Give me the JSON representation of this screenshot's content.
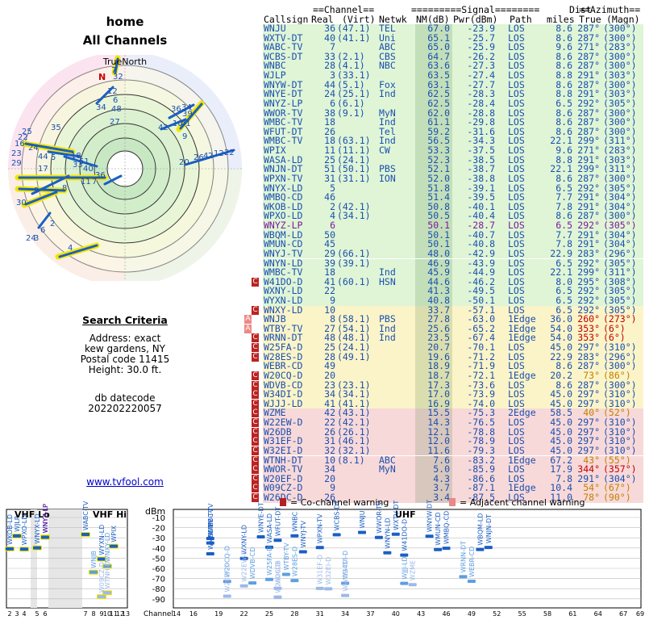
{
  "header": {
    "location": "home",
    "subtitle": "All Channels"
  },
  "radar": {
    "north_label": "TrueNorth",
    "north_marker": "N"
  },
  "criteria": {
    "heading": "Search Criteria",
    "address": "Address: exact",
    "city": "kew gardens, NY",
    "postal": "Postal code 11415",
    "height": "Height: 30.0 ft.",
    "db_label": "db datecode",
    "db_value": "202202220057"
  },
  "footer_link": "www.tvfool.com",
  "table": {
    "group_channel": "==Channel==",
    "group_signal": "=========Signal========",
    "group_dist": "Dist",
    "group_azimuth": "==Azimuth==",
    "col_callsign": "Callsign",
    "col_real": "Real",
    "col_virt": "(Virt)",
    "col_netwk": "Netwk",
    "col_nm": "NM(dB)",
    "col_pwr": "Pwr(dBm)",
    "col_path": "Path",
    "col_miles": "miles",
    "col_true": "True",
    "col_magn": "(Magn)",
    "rows": [
      {
        "call": "WNJU",
        "real": "36",
        "virt": "(47.1)",
        "net": "TEL",
        "nm": "67.0",
        "pwr": "-23.9",
        "path": "LOS",
        "dist": "8.6",
        "true": "287°",
        "magn": "(300°)",
        "zone": "g",
        "warn": ""
      },
      {
        "call": "WXTV-DT",
        "real": "40",
        "virt": "(41.1)",
        "net": "Uni",
        "nm": "65.1",
        "pwr": "-25.7",
        "path": "LOS",
        "dist": "8.6",
        "true": "287°",
        "magn": "(300°)",
        "zone": "g",
        "warn": ""
      },
      {
        "call": "WABC-TV",
        "real": "7",
        "virt": "",
        "net": "ABC",
        "nm": "65.0",
        "pwr": "-25.9",
        "path": "LOS",
        "dist": "9.6",
        "true": "271°",
        "magn": "(283°)",
        "zone": "g",
        "warn": ""
      },
      {
        "call": "WCBS-DT",
        "real": "33",
        "virt": "(2.1)",
        "net": "CBS",
        "nm": "64.7",
        "pwr": "-26.2",
        "path": "LOS",
        "dist": "8.6",
        "true": "287°",
        "magn": "(300°)",
        "zone": "g",
        "warn": ""
      },
      {
        "call": "WNBC",
        "real": "28",
        "virt": "(4.1)",
        "net": "NBC",
        "nm": "63.6",
        "pwr": "-27.3",
        "path": "LOS",
        "dist": "8.6",
        "true": "287°",
        "magn": "(300°)",
        "zone": "g",
        "warn": ""
      },
      {
        "call": "WJLP",
        "real": "3",
        "virt": "(33.1)",
        "net": "",
        "nm": "63.5",
        "pwr": "-27.4",
        "path": "LOS",
        "dist": "8.8",
        "true": "291°",
        "magn": "(303°)",
        "zone": "g",
        "warn": ""
      },
      {
        "call": "WNYW-DT",
        "real": "44",
        "virt": "(5.1)",
        "net": "Fox",
        "nm": "63.1",
        "pwr": "-27.7",
        "path": "LOS",
        "dist": "8.6",
        "true": "287°",
        "magn": "(300°)",
        "zone": "g",
        "warn": ""
      },
      {
        "call": "WNYE-DT",
        "real": "24",
        "virt": "(25.1)",
        "net": "Ind",
        "nm": "62.5",
        "pwr": "-28.3",
        "path": "LOS",
        "dist": "8.8",
        "true": "291°",
        "magn": "(303°)",
        "zone": "g",
        "warn": ""
      },
      {
        "call": "WNYZ-LP",
        "real": "6",
        "virt": "(6.1)",
        "net": "",
        "nm": "62.5",
        "pwr": "-28.4",
        "path": "LOS",
        "dist": "6.5",
        "true": "292°",
        "magn": "(305°)",
        "zone": "g",
        "warn": ""
      },
      {
        "call": "WWOR-TV",
        "real": "38",
        "virt": "(9.1)",
        "net": "MyN",
        "nm": "62.0",
        "pwr": "-28.8",
        "path": "LOS",
        "dist": "8.6",
        "true": "287°",
        "magn": "(300°)",
        "zone": "g",
        "warn": ""
      },
      {
        "call": "WMBC-TV",
        "real": "18",
        "virt": "",
        "net": "Ind",
        "nm": "61.1",
        "pwr": "-29.8",
        "path": "LOS",
        "dist": "8.6",
        "true": "287°",
        "magn": "(300°)",
        "zone": "g",
        "warn": ""
      },
      {
        "call": "WFUT-DT",
        "real": "26",
        "virt": "",
        "net": "Tel",
        "nm": "59.2",
        "pwr": "-31.6",
        "path": "LOS",
        "dist": "8.6",
        "true": "287°",
        "magn": "(300°)",
        "zone": "g",
        "warn": ""
      },
      {
        "call": "WMBC-TV",
        "real": "18",
        "virt": "(63.1)",
        "net": "Ind",
        "nm": "56.5",
        "pwr": "-34.3",
        "path": "LOS",
        "dist": "22.1",
        "true": "299°",
        "magn": "(311°)",
        "zone": "g",
        "warn": ""
      },
      {
        "call": "WPIX",
        "real": "11",
        "virt": "(11.1)",
        "net": "CW",
        "nm": "53.3",
        "pwr": "-37.5",
        "path": "LOS",
        "dist": "9.6",
        "true": "271°",
        "magn": "(283°)",
        "zone": "g",
        "warn": ""
      },
      {
        "call": "WASA-LD",
        "real": "25",
        "virt": "(24.1)",
        "net": "",
        "nm": "52.3",
        "pwr": "-38.5",
        "path": "LOS",
        "dist": "8.8",
        "true": "291°",
        "magn": "(303°)",
        "zone": "g",
        "warn": ""
      },
      {
        "call": "WNJN-DT",
        "real": "51",
        "virt": "(50.1)",
        "net": "PBS",
        "nm": "52.1",
        "pwr": "-38.7",
        "path": "LOS",
        "dist": "22.1",
        "true": "299°",
        "magn": "(311°)",
        "zone": "g",
        "warn": ""
      },
      {
        "call": "WPXN-TV",
        "real": "31",
        "virt": "(31.1)",
        "net": "ION",
        "nm": "52.0",
        "pwr": "-38.8",
        "path": "LOS",
        "dist": "8.6",
        "true": "287°",
        "magn": "(300°)",
        "zone": "g",
        "warn": ""
      },
      {
        "call": "WNYX-LD",
        "real": "5",
        "virt": "",
        "net": "",
        "nm": "51.8",
        "pwr": "-39.1",
        "path": "LOS",
        "dist": "6.5",
        "true": "292°",
        "magn": "(305°)",
        "zone": "g",
        "warn": ""
      },
      {
        "call": "WMBQ-CD",
        "real": "46",
        "virt": "",
        "net": "",
        "nm": "51.4",
        "pwr": "-39.5",
        "path": "LOS",
        "dist": "7.7",
        "true": "291°",
        "magn": "(304°)",
        "zone": "g",
        "warn": ""
      },
      {
        "call": "WKOB-LD",
        "real": "2",
        "virt": "(42.1)",
        "net": "",
        "nm": "50.8",
        "pwr": "-40.1",
        "path": "LOS",
        "dist": "7.8",
        "true": "291°",
        "magn": "(304°)",
        "zone": "g",
        "warn": ""
      },
      {
        "call": "WPXO-LD",
        "real": "4",
        "virt": "(34.1)",
        "net": "",
        "nm": "50.5",
        "pwr": "-40.4",
        "path": "LOS",
        "dist": "8.6",
        "true": "287°",
        "magn": "(300°)",
        "zone": "g",
        "warn": ""
      },
      {
        "call": "WNYZ-LP",
        "real": "6",
        "virt": "",
        "net": "",
        "nm": "50.1",
        "pwr": "-28.7",
        "path": "LOS",
        "dist": "6.5",
        "true": "292°",
        "magn": "(305°)",
        "zone": "g",
        "warn": "",
        "purple": true
      },
      {
        "call": "WBQM-LD",
        "real": "50",
        "virt": "",
        "net": "",
        "nm": "50.1",
        "pwr": "-40.7",
        "path": "LOS",
        "dist": "7.7",
        "true": "291°",
        "magn": "(304°)",
        "zone": "g",
        "warn": ""
      },
      {
        "call": "WMUN-CD",
        "real": "45",
        "virt": "",
        "net": "",
        "nm": "50.1",
        "pwr": "-40.8",
        "path": "LOS",
        "dist": "7.8",
        "true": "291°",
        "magn": "(304°)",
        "zone": "g",
        "warn": ""
      },
      {
        "call": "WNYJ-TV",
        "real": "29",
        "virt": "(66.1)",
        "net": "",
        "nm": "48.0",
        "pwr": "-42.9",
        "path": "LOS",
        "dist": "22.9",
        "true": "283°",
        "magn": "(296°)",
        "zone": "g",
        "warn": ""
      },
      {
        "call": "WNYN-LD",
        "real": "39",
        "virt": "(39.1)",
        "net": "",
        "nm": "46.9",
        "pwr": "-43.9",
        "path": "LOS",
        "dist": "6.5",
        "true": "292°",
        "magn": "(305°)",
        "zone": "g",
        "warn": ""
      },
      {
        "call": "WMBC-TV",
        "real": "18",
        "virt": "",
        "net": "Ind",
        "nm": "45.9",
        "pwr": "-44.9",
        "path": "LOS",
        "dist": "22.1",
        "true": "299°",
        "magn": "(311°)",
        "zone": "g",
        "warn": ""
      },
      {
        "call": "W41DO-D",
        "real": "41",
        "virt": "(60.1)",
        "net": "HSN",
        "nm": "44.6",
        "pwr": "-46.2",
        "path": "LOS",
        "dist": "8.0",
        "true": "295°",
        "magn": "(308°)",
        "zone": "g",
        "warn": "C"
      },
      {
        "call": "WXNY-LD",
        "real": "22",
        "virt": "",
        "net": "",
        "nm": "41.3",
        "pwr": "-49.5",
        "path": "LOS",
        "dist": "6.5",
        "true": "292°",
        "magn": "(305°)",
        "zone": "g",
        "warn": ""
      },
      {
        "call": "WYXN-LD",
        "real": "9",
        "virt": "",
        "net": "",
        "nm": "40.8",
        "pwr": "-50.1",
        "path": "LOS",
        "dist": "6.5",
        "true": "292°",
        "magn": "(305°)",
        "zone": "g",
        "warn": ""
      },
      {
        "call": "WNXY-LD",
        "real": "10",
        "virt": "",
        "net": "",
        "nm": "33.7",
        "pwr": "-57.1",
        "path": "LOS",
        "dist": "6.5",
        "true": "292°",
        "magn": "(305°)",
        "zone": "y",
        "warn": "C"
      },
      {
        "call": "WNJB",
        "real": "8",
        "virt": "(58.1)",
        "net": "PBS",
        "nm": "27.8",
        "pwr": "-63.0",
        "path": "1Edge",
        "dist": "36.0",
        "true": "260°",
        "magn": "(273°)",
        "zone": "y",
        "warn": "A"
      },
      {
        "call": "WTBY-TV",
        "real": "27",
        "virt": "(54.1)",
        "net": "Ind",
        "nm": "25.6",
        "pwr": "-65.2",
        "path": "1Edge",
        "dist": "54.0",
        "true": "353°",
        "magn": "(6°)",
        "zone": "y",
        "warn": "A"
      },
      {
        "call": "WRNN-DT",
        "real": "48",
        "virt": "(48.1)",
        "net": "Ind",
        "nm": "23.5",
        "pwr": "-67.4",
        "path": "1Edge",
        "dist": "54.0",
        "true": "353°",
        "magn": "(6°)",
        "zone": "y",
        "warn": "C"
      },
      {
        "call": "W25FA-D",
        "real": "25",
        "virt": "(24.1)",
        "net": "",
        "nm": "20.7",
        "pwr": "-70.1",
        "path": "LOS",
        "dist": "45.0",
        "true": "297°",
        "magn": "(310°)",
        "zone": "y",
        "warn": "C"
      },
      {
        "call": "W28ES-D",
        "real": "28",
        "virt": "(49.1)",
        "net": "",
        "nm": "19.6",
        "pwr": "-71.2",
        "path": "LOS",
        "dist": "22.9",
        "true": "283°",
        "magn": "(296°)",
        "zone": "y",
        "warn": "C"
      },
      {
        "call": "WEBR-CD",
        "real": "49",
        "virt": "",
        "net": "",
        "nm": "18.9",
        "pwr": "-71.9",
        "path": "LOS",
        "dist": "8.6",
        "true": "287°",
        "magn": "(300°)",
        "zone": "y",
        "warn": ""
      },
      {
        "call": "W20CQ-D",
        "real": "20",
        "virt": "",
        "net": "",
        "nm": "18.7",
        "pwr": "-72.1",
        "path": "1Edge",
        "dist": "20.2",
        "true": "73°",
        "magn": "(86°)",
        "zone": "y",
        "warn": "C"
      },
      {
        "call": "WDVB-CD",
        "real": "23",
        "virt": "(23.1)",
        "net": "",
        "nm": "17.3",
        "pwr": "-73.6",
        "path": "LOS",
        "dist": "8.6",
        "true": "287°",
        "magn": "(300°)",
        "zone": "y",
        "warn": "C"
      },
      {
        "call": "W34DI-D",
        "real": "34",
        "virt": "(34.1)",
        "net": "",
        "nm": "17.0",
        "pwr": "-73.9",
        "path": "LOS",
        "dist": "45.0",
        "true": "297°",
        "magn": "(310°)",
        "zone": "y",
        "warn": "C"
      },
      {
        "call": "WJJJ-LD",
        "real": "41",
        "virt": "(41.1)",
        "net": "",
        "nm": "16.9",
        "pwr": "-74.0",
        "path": "LOS",
        "dist": "45.0",
        "true": "297°",
        "magn": "(310°)",
        "zone": "y",
        "warn": "C"
      },
      {
        "call": "WZME",
        "real": "42",
        "virt": "(43.1)",
        "net": "",
        "nm": "15.5",
        "pwr": "-75.3",
        "path": "2Edge",
        "dist": "58.5",
        "true": "40°",
        "magn": "(52°)",
        "zone": "r",
        "warn": "C"
      },
      {
        "call": "W22EW-D",
        "real": "22",
        "virt": "(42.1)",
        "net": "",
        "nm": "14.3",
        "pwr": "-76.5",
        "path": "LOS",
        "dist": "45.0",
        "true": "297°",
        "magn": "(310°)",
        "zone": "r",
        "warn": "C"
      },
      {
        "call": "W26DB",
        "real": "26",
        "virt": "(26.1)",
        "net": "",
        "nm": "12.1",
        "pwr": "-78.8",
        "path": "LOS",
        "dist": "45.0",
        "true": "297°",
        "magn": "(310°)",
        "zone": "r",
        "warn": "C"
      },
      {
        "call": "W31EF-D",
        "real": "31",
        "virt": "(46.1)",
        "net": "",
        "nm": "12.0",
        "pwr": "-78.9",
        "path": "LOS",
        "dist": "45.0",
        "true": "297°",
        "magn": "(310°)",
        "zone": "r",
        "warn": "C"
      },
      {
        "call": "W32EI-D",
        "real": "32",
        "virt": "(32.1)",
        "net": "",
        "nm": "11.6",
        "pwr": "-79.3",
        "path": "LOS",
        "dist": "45.0",
        "true": "297°",
        "magn": "(310°)",
        "zone": "r",
        "warn": "C"
      },
      {
        "call": "WTNH-DT",
        "real": "10",
        "virt": "(8.1)",
        "net": "ABC",
        "nm": "7.6",
        "pwr": "-83.2",
        "path": "1Edge",
        "dist": "67.2",
        "true": "43°",
        "magn": "(55°)",
        "zone": "r",
        "warn": "C"
      },
      {
        "call": "WWOR-TV",
        "real": "34",
        "virt": "",
        "net": "MyN",
        "nm": "5.0",
        "pwr": "-85.9",
        "path": "LOS",
        "dist": "17.9",
        "true": "344°",
        "magn": "(357°)",
        "zone": "r",
        "warn": "C"
      },
      {
        "call": "W20EF-D",
        "real": "20",
        "virt": "",
        "net": "",
        "nm": "4.3",
        "pwr": "-86.6",
        "path": "LOS",
        "dist": "7.8",
        "true": "291°",
        "magn": "(304°)",
        "zone": "r",
        "warn": "C"
      },
      {
        "call": "W09CZ-D",
        "real": "9",
        "virt": "",
        "net": "",
        "nm": "3.7",
        "pwr": "-87.1",
        "path": "1Edge",
        "dist": "10.4",
        "true": "54°",
        "magn": "(67°)",
        "zone": "r",
        "warn": "C"
      },
      {
        "call": "W26DC-D",
        "real": "26",
        "virt": "",
        "net": "",
        "nm": "3.4",
        "pwr": "-87.5",
        "path": "LOS",
        "dist": "11.0",
        "true": "78°",
        "magn": "(90°)",
        "zone": "r",
        "warn": "C"
      }
    ]
  },
  "spectrum": {
    "vhf_lo": "VHF Lo",
    "vhf_hi": "VHF Hi",
    "uhf": "UHF",
    "dbm_label": "dBm",
    "channel_label": "Channel",
    "legend_cochannel": "= Co-channel warning",
    "legend_adjacent": "= Adjacent channel warning",
    "y_ticks": [
      "-10",
      "-20",
      "-30",
      "-40",
      "-50",
      "-60",
      "-70",
      "-80",
      "-90"
    ],
    "x_ticks_vhf": [
      "2",
      "3",
      "4",
      "5",
      "6",
      "7",
      "8",
      "9",
      "10",
      "11",
      "12",
      "13"
    ],
    "x_ticks_uhf": [
      "14",
      "16",
      "19",
      "22",
      "25",
      "28",
      "31",
      "34",
      "37",
      "40",
      "43",
      "46",
      "49",
      "52",
      "55",
      "58",
      "61",
      "64",
      "67",
      "69"
    ]
  },
  "colors": {
    "zone_green": "#dff5d6",
    "zone_yellow": "#fbf4c8",
    "zone_red": "#f8d9d9",
    "text_blue": "#1a4fb0",
    "text_purple": "#7a1a9a",
    "azimuth_red": "#c00000",
    "warn_co": "#b22222",
    "warn_adj": "#e88888"
  }
}
